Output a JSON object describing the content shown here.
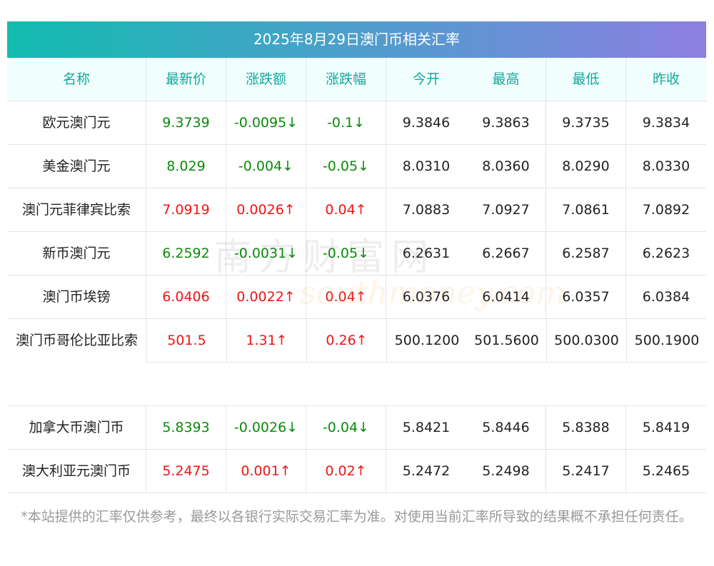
{
  "title": "2025年8月29日澳门币相关汇率",
  "headers": [
    "名称",
    "最新价",
    "涨跌额",
    "涨跌幅",
    "今开",
    "最高",
    "最低",
    "昨收"
  ],
  "rows": [
    {
      "name": "欧元澳门元",
      "price": "9.3739",
      "change": "-0.0095↓",
      "pct": "-0.1↓",
      "open": "9.3846",
      "high": "9.3863",
      "low": "9.3735",
      "prev": "9.3834",
      "dir": "down"
    },
    {
      "name": "美金澳门元",
      "price": "8.029",
      "change": "-0.004↓",
      "pct": "-0.05↓",
      "open": "8.0310",
      "high": "8.0360",
      "low": "8.0290",
      "prev": "8.0330",
      "dir": "down"
    },
    {
      "name": "澳门元菲律宾比索",
      "price": "7.0919",
      "change": "0.0026↑",
      "pct": "0.04↑",
      "open": "7.0883",
      "high": "7.0927",
      "low": "7.0861",
      "prev": "7.0892",
      "dir": "up"
    },
    {
      "name": "新币澳门元",
      "price": "6.2592",
      "change": "-0.0031↓",
      "pct": "-0.05↓",
      "open": "6.2631",
      "high": "6.2667",
      "low": "6.2587",
      "prev": "6.2623",
      "dir": "down"
    },
    {
      "name": "澳门币埃镑",
      "price": "6.0406",
      "change": "0.0022↑",
      "pct": "0.04↑",
      "open": "6.0376",
      "high": "6.0414",
      "low": "6.0357",
      "prev": "6.0384",
      "dir": "up"
    },
    {
      "name": "澳门币哥伦比亚比索",
      "price": "501.5",
      "change": "1.31↑",
      "pct": "0.26↑",
      "open": "500.1200",
      "high": "501.5600",
      "low": "500.0300",
      "prev": "500.1900",
      "dir": "up"
    },
    {
      "name": "加拿大币澳门币",
      "price": "5.8393",
      "change": "-0.0026↓",
      "pct": "-0.04↓",
      "open": "5.8421",
      "high": "5.8446",
      "low": "5.8388",
      "prev": "5.8419",
      "dir": "down"
    },
    {
      "name": "澳大利亚元澳门币",
      "price": "5.2475",
      "change": "0.001↑",
      "pct": "0.02↑",
      "open": "5.2472",
      "high": "5.2498",
      "low": "5.2417",
      "prev": "5.2465",
      "dir": "up"
    }
  ],
  "watermark": {
    "cn": "南方财富网",
    "en": "southmoney.com"
  },
  "note": "*本站提供的汇率仅供参考，最终以各银行实际交易汇率为准。对使用当前汇率所导致的结果概不承担任何责任。",
  "colors": {
    "up": "#f01414",
    "down": "#0a8a0a",
    "header_text": "#14a89c",
    "gradient_start": "#12bcaf",
    "gradient_end": "#8d7fe0"
  }
}
